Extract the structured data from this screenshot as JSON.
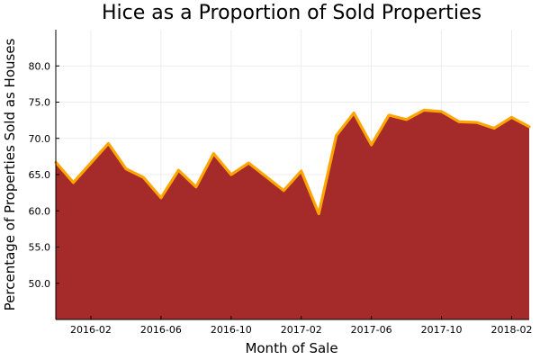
{
  "chart_data": {
    "type": "area",
    "title": "Hice as a Proportion of Sold Properties",
    "xlabel": "Month of Sale",
    "ylabel": "Percentage of Properties Sold as Houses",
    "x_tick_labels": [
      "2016-02",
      "2016-06",
      "2016-10",
      "2017-02",
      "2017-06",
      "2017-10",
      "2018-02"
    ],
    "y_tick_labels": [
      "50.0",
      "55.0",
      "60.0",
      "65.0",
      "70.0",
      "75.0",
      "80.0"
    ],
    "y_ticks": [
      50,
      55,
      60,
      65,
      70,
      75,
      80
    ],
    "ylim": [
      45,
      85
    ],
    "grid": true,
    "legend": "none",
    "fill_color": "#a52a2a",
    "line_color": "#ffa500",
    "series": [
      {
        "x": [
          "2015-12",
          "2016-01",
          "2016-02",
          "2016-03",
          "2016-04",
          "2016-05",
          "2016-06",
          "2016-07",
          "2016-08",
          "2016-09",
          "2016-10",
          "2016-11",
          "2016-12",
          "2017-01",
          "2017-02",
          "2017-03",
          "2017-04",
          "2017-05",
          "2017-06",
          "2017-07",
          "2017-08",
          "2017-09",
          "2017-10",
          "2017-11",
          "2017-12",
          "2018-01",
          "2018-02",
          "2018-03"
        ],
        "values": [
          66.7,
          63.9,
          66.6,
          69.3,
          65.8,
          64.6,
          61.8,
          65.6,
          63.3,
          67.9,
          65.0,
          66.6,
          64.7,
          62.8,
          65.5,
          59.6,
          70.4,
          73.5,
          69.1,
          73.2,
          72.6,
          73.9,
          73.7,
          72.3,
          72.2,
          71.4,
          72.9,
          71.6
        ]
      }
    ]
  }
}
